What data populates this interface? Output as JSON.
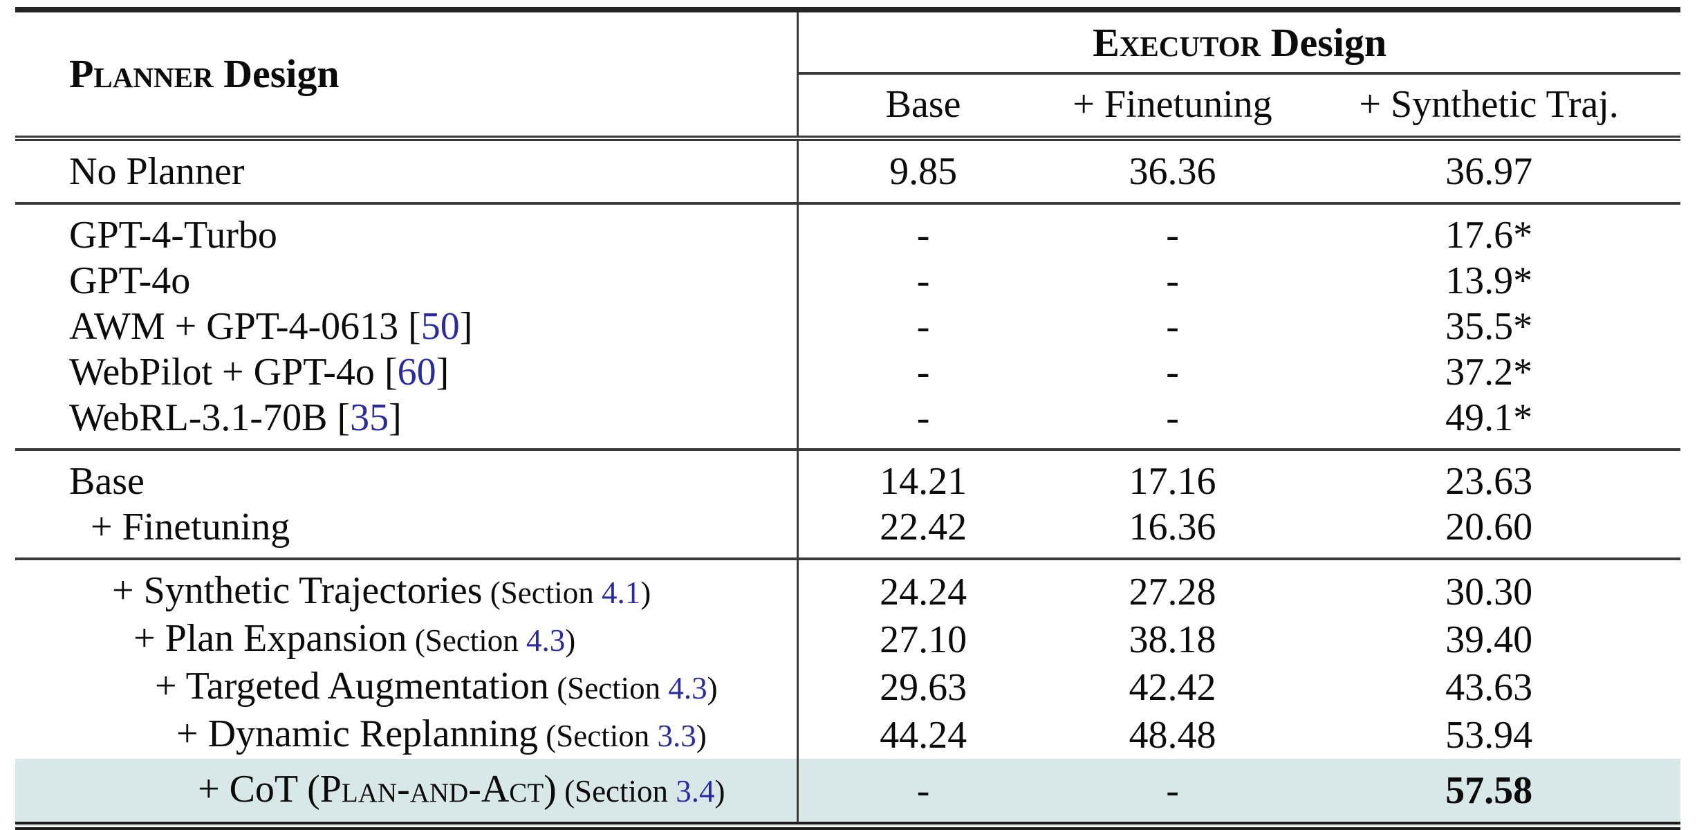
{
  "colors": {
    "highlight_row_bg": "#d8e7e8",
    "reference_blue": "#2a2aa4",
    "rule_color": "#3a3a3a"
  },
  "table": {
    "planner_header_sc": "Planner",
    "planner_header_rest": " Design",
    "executor_header_sc": "Executor",
    "executor_header_rest": " Design",
    "column_headers": [
      "Base",
      "+ Finetuning",
      "+ Synthetic Traj."
    ],
    "groups": [
      {
        "separator_after": "single",
        "rows": [
          {
            "label": "No Planner",
            "indent": 0,
            "values": [
              "9.85",
              "36.36",
              "36.97"
            ]
          }
        ]
      },
      {
        "separator_after": "single",
        "rows": [
          {
            "label": "GPT-4-Turbo",
            "indent": 0,
            "values": [
              "-",
              "-",
              "17.6*"
            ]
          },
          {
            "label": "GPT-4o",
            "indent": 0,
            "values": [
              "-",
              "-",
              "13.9*"
            ]
          },
          {
            "label": "AWM + GPT-4-0613",
            "cite": "50",
            "indent": 0,
            "values": [
              "-",
              "-",
              "35.5*"
            ]
          },
          {
            "label": "WebPilot + GPT-4o",
            "cite": "60",
            "indent": 0,
            "values": [
              "-",
              "-",
              "37.2*"
            ]
          },
          {
            "label": "WebRL-3.1-70B",
            "cite": "35",
            "indent": 0,
            "values": [
              "-",
              "-",
              "49.1*"
            ]
          }
        ]
      },
      {
        "separator_after": "single",
        "rows": [
          {
            "label": "Base",
            "indent": 0,
            "values": [
              "14.21",
              "17.16",
              "23.63"
            ]
          },
          {
            "label": "+ Finetuning",
            "indent": 1,
            "values": [
              "22.42",
              "16.36",
              "20.60"
            ]
          }
        ]
      },
      {
        "separator_after": "bottom",
        "rows": [
          {
            "label": "+ Synthetic Trajectories",
            "section": "4.1",
            "indent": 2,
            "values": [
              "24.24",
              "27.28",
              "30.30"
            ]
          },
          {
            "label": "+ Plan Expansion",
            "section": "4.3",
            "indent": 3,
            "values": [
              "27.10",
              "38.18",
              "39.40"
            ]
          },
          {
            "label": "+ Targeted Augmentation",
            "section": "4.3",
            "indent": 4,
            "values": [
              "29.63",
              "42.42",
              "43.63"
            ]
          },
          {
            "label": "+ Dynamic Replanning",
            "section": "3.3",
            "indent": 5,
            "values": [
              "44.24",
              "48.48",
              "53.94"
            ]
          },
          {
            "label": "+ CoT (",
            "label_sc": "Plan-and-Act",
            "label_post": ")",
            "section": "3.4",
            "indent": 6,
            "values": [
              "-",
              "-",
              "57.58"
            ],
            "bold_cols": [
              2
            ],
            "highlight": true
          }
        ]
      }
    ]
  }
}
